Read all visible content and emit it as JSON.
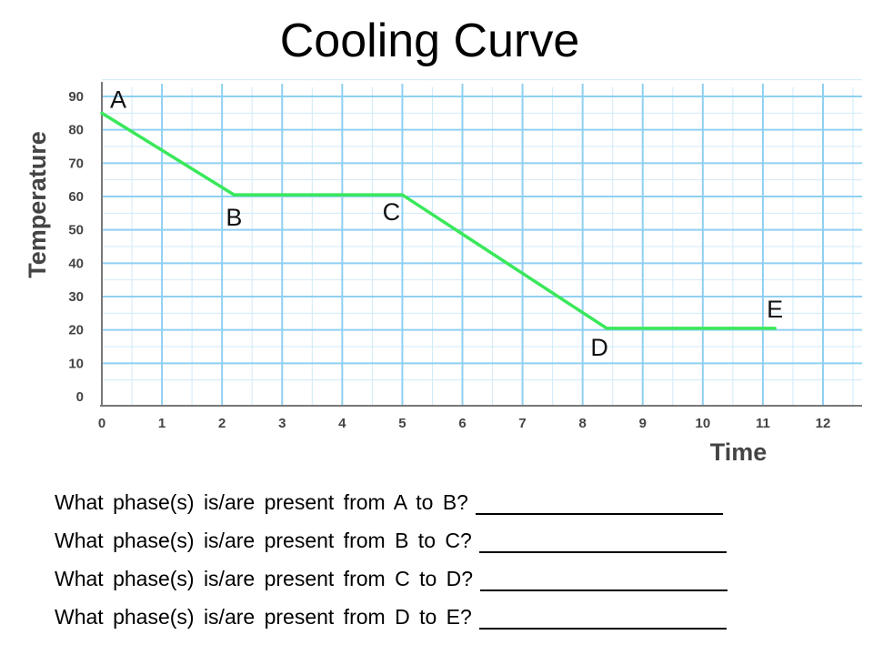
{
  "title": "Cooling Curve",
  "chart_data": {
    "type": "line",
    "xlabel": "Time",
    "ylabel": "Temperature",
    "xlim": [
      0,
      12
    ],
    "ylim": [
      0,
      90
    ],
    "x_ticks": [
      "0",
      "1",
      "2",
      "3",
      "4",
      "5",
      "6",
      "7",
      "8",
      "9",
      "10",
      "11",
      "12"
    ],
    "y_ticks": [
      "0",
      "10",
      "20",
      "30",
      "40",
      "50",
      "60",
      "70",
      "80",
      "90"
    ],
    "grid": true,
    "colors": {
      "line": "#39e85a",
      "grid_major": "#8fd0f2",
      "grid_minor": "#cfe9f9",
      "axis": "#777777"
    },
    "series": [
      {
        "x": [
          0,
          2.2,
          5,
          8.4,
          11.2
        ],
        "y": [
          85,
          60.5,
          60.5,
          20.5,
          20.5
        ]
      }
    ],
    "points": [
      {
        "label": "A",
        "x": 0,
        "y": 85
      },
      {
        "label": "B",
        "x": 2.2,
        "y": 60.5
      },
      {
        "label": "C",
        "x": 5,
        "y": 60.5
      },
      {
        "label": "D",
        "x": 8.4,
        "y": 20.5
      },
      {
        "label": "E",
        "x": 11.2,
        "y": 20.5
      }
    ]
  },
  "questions": [
    "What phase(s) is/are present from A to B?",
    "What phase(s) is/are present from B to C?",
    "What phase(s) is/are present from C to D?",
    "What phase(s) is/are present from D to E?"
  ]
}
